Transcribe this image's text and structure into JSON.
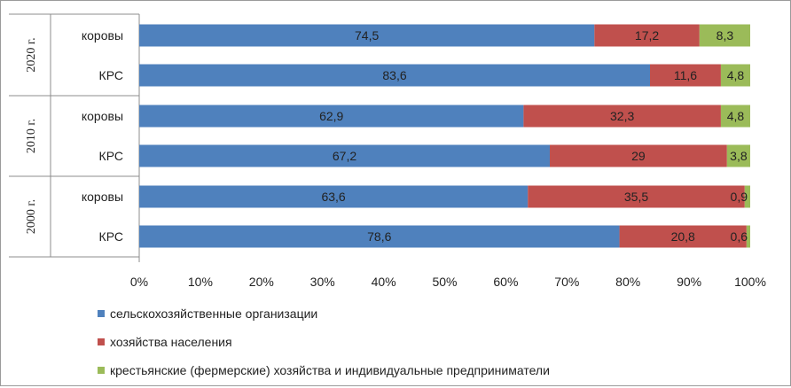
{
  "chart_data": {
    "type": "bar",
    "orientation": "horizontal",
    "stacked": "percent",
    "groups": [
      {
        "label": "2020 г.",
        "rows": [
          {
            "label": "коровы",
            "values": [
              74.5,
              17.2,
              8.3
            ],
            "labels": [
              "74,5",
              "17,2",
              "8,3"
            ]
          },
          {
            "label": "КРС",
            "values": [
              83.6,
              11.6,
              4.8
            ],
            "labels": [
              "83,6",
              "11,6",
              "4,8"
            ]
          }
        ]
      },
      {
        "label": "2010 г.",
        "rows": [
          {
            "label": "коровы",
            "values": [
              62.9,
              32.3,
              4.8
            ],
            "labels": [
              "62,9",
              "32,3",
              "4,8"
            ]
          },
          {
            "label": "КРС",
            "values": [
              67.2,
              29,
              3.8
            ],
            "labels": [
              "67,2",
              "29",
              "3,8"
            ]
          }
        ]
      },
      {
        "label": "2000 г.",
        "rows": [
          {
            "label": "коровы",
            "values": [
              63.6,
              35.5,
              0.9
            ],
            "labels": [
              "63,6",
              "35,5",
              "0,9"
            ]
          },
          {
            "label": "КРС",
            "values": [
              78.6,
              20.8,
              0.6
            ],
            "labels": [
              "78,6",
              "20,8",
              "0,6"
            ]
          }
        ]
      }
    ],
    "series": [
      {
        "name": "сельскохозяйственные организации",
        "color": "#4f81bd"
      },
      {
        "name": "хозяйства населения",
        "color": "#c0504d"
      },
      {
        "name": "крестьянские (фермерские)  хозяйства и индивидуальные предприниматели",
        "color": "#9bbb59"
      }
    ],
    "x_ticks": [
      "0%",
      "10%",
      "20%",
      "30%",
      "40%",
      "50%",
      "60%",
      "70%",
      "80%",
      "90%",
      "100%"
    ],
    "xlim": [
      0,
      100
    ],
    "legend_position": "bottom",
    "grid": false
  }
}
